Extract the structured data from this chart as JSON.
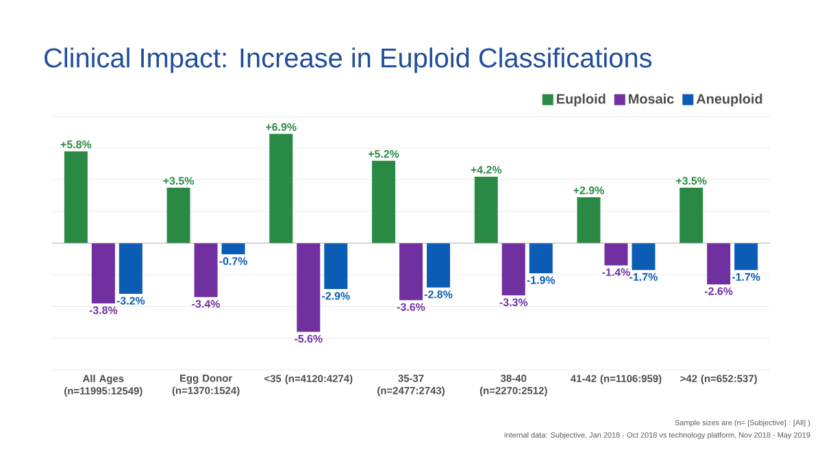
{
  "chart_data": {
    "type": "bar",
    "title": "Clinical Impact: Increase in Euploid Classifications",
    "categories": [
      "All Ages (n=11995:12549)",
      "Egg Donor (n=1370:1524)",
      "<35 (n=4120:4274)",
      "35-37 (n=2477:2743)",
      "38-40 (n=2270:2512)",
      "41-42 (n=1106:959)",
      ">42 (n=652:537)"
    ],
    "series": [
      {
        "name": "Euploid",
        "color": "#2a8a45",
        "values": [
          5.8,
          3.5,
          6.9,
          5.2,
          4.2,
          2.9,
          3.5
        ],
        "value_labels": [
          "+5.8%",
          "+3.5%",
          "+6.9%",
          "+5.2%",
          "+4.2%",
          "+2.9%",
          "+3.5%"
        ]
      },
      {
        "name": "Mosaic",
        "color": "#7030a0",
        "values": [
          -3.8,
          -3.4,
          -5.6,
          -3.6,
          -3.3,
          -1.4,
          -2.6
        ],
        "value_labels": [
          "-3.8%",
          "-3.4%",
          "-5.6%",
          "-3.6%",
          "-3.3%",
          "-1.4%",
          "-2.6%"
        ]
      },
      {
        "name": "Aneuploid",
        "color": "#0a5cb5",
        "values": [
          -3.2,
          -0.7,
          -2.9,
          -2.8,
          -1.9,
          -1.7,
          -1.7
        ],
        "value_labels": [
          "-3.2%",
          "-0.7%",
          "-2.9%",
          "-2.8%",
          "-1.9%",
          "-1.7%",
          "-1.7%"
        ]
      }
    ],
    "ylim": [
      -8,
      8
    ],
    "yticks": [
      {
        "value": -8,
        "label": null
      },
      {
        "value": -6,
        "label": null
      },
      {
        "value": -4,
        "label": null
      },
      {
        "value": -2,
        "label": null
      },
      {
        "value": 0,
        "label": null
      },
      {
        "value": 2,
        "label": null
      },
      {
        "value": 4,
        "label": null
      },
      {
        "value": 6,
        "label": null
      },
      {
        "value": 8,
        "label": null
      }
    ],
    "grid": "y",
    "tick_labels": "x",
    "legend": "top right",
    "annotations": [
      "Sample sizes are (n= [Subjective] : [All] )",
      "internal data: Subjective, Jan 2018 - Oct 2018 vs technology platform, Nov 2018 - May 2019"
    ]
  }
}
